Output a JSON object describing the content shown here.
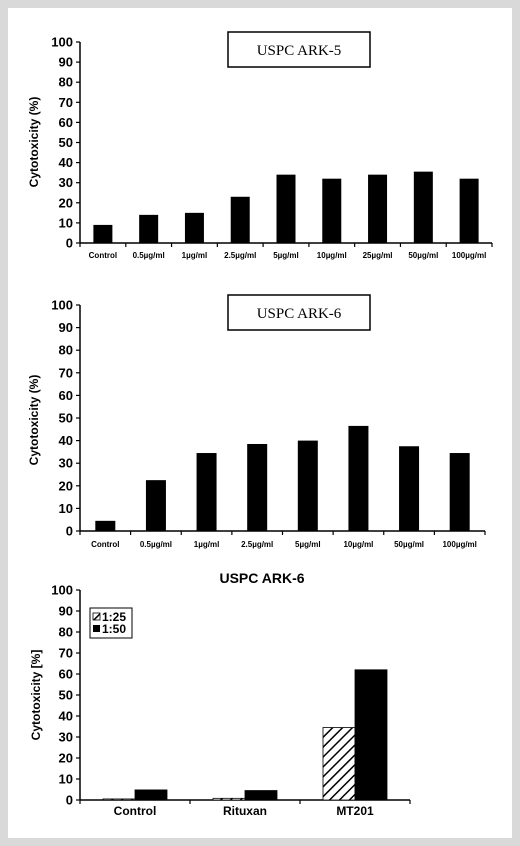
{
  "chart_data": [
    {
      "type": "bar",
      "title": "USPC ARK-5",
      "ylabel": "Cytotoxicity (%)",
      "ylim": [
        0,
        100
      ],
      "yticks": [
        "0",
        "10",
        "20",
        "30",
        "40",
        "50",
        "60",
        "70",
        "80",
        "90",
        "100"
      ],
      "categories": [
        "Control",
        "0.5µg/ml",
        "1µg/ml",
        "2.5µg/ml",
        "5µg/ml",
        "10µg/ml",
        "25µg/ml",
        "50µg/ml",
        "100µg/ml"
      ],
      "values": [
        9,
        14,
        15,
        23,
        34,
        32,
        34,
        35.5,
        32
      ],
      "bar_color": "#000000"
    },
    {
      "type": "bar",
      "title": "USPC ARK-6",
      "ylabel": "Cytotoxicity (%)",
      "ylim": [
        0,
        100
      ],
      "yticks": [
        "0",
        "10",
        "20",
        "30",
        "40",
        "50",
        "60",
        "70",
        "80",
        "90",
        "100"
      ],
      "categories": [
        "Control",
        "0.5µg/ml",
        "1µg/ml",
        "2.5µg/ml",
        "5µg/ml",
        "10µg/ml",
        "50µg/ml",
        "100µg/ml"
      ],
      "values": [
        4.5,
        22.5,
        34.5,
        38.5,
        40,
        46.5,
        37.5,
        34.5
      ],
      "bar_color": "#000000"
    },
    {
      "type": "bar",
      "title": "USPC ARK-6",
      "ylabel": "Cytotoxicity [%]",
      "ylim": [
        0,
        100
      ],
      "yticks": [
        "0",
        "10",
        "20",
        "30",
        "40",
        "50",
        "60",
        "70",
        "80",
        "90",
        "100"
      ],
      "categories": [
        "Control",
        "Rituxan",
        "MT201"
      ],
      "series": [
        {
          "name": "1:25",
          "values": [
            0.5,
            0.8,
            34.5
          ],
          "pattern": "hatch"
        },
        {
          "name": "1:50",
          "values": [
            4.8,
            4.5,
            62
          ],
          "pattern": "solid"
        }
      ],
      "legend_position": "top-left"
    }
  ]
}
